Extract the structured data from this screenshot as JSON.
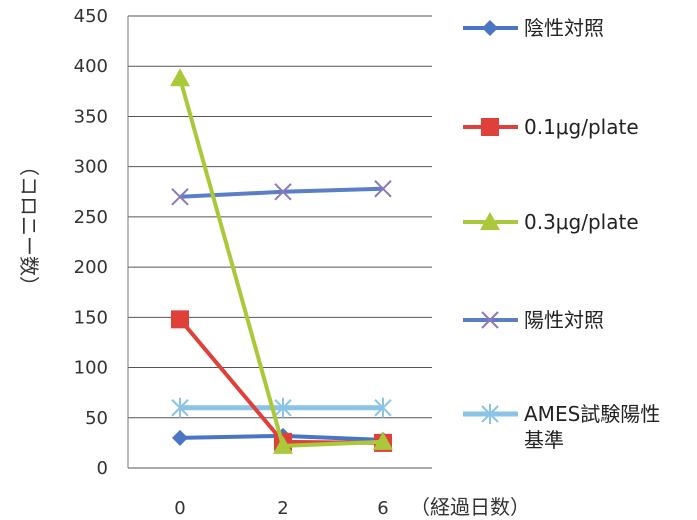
{
  "chart_data": {
    "type": "line",
    "categories": [
      "0",
      "2",
      "6"
    ],
    "xlabel": "（経過日数）",
    "ylabel": "（コロニー数）",
    "ylim": [
      0,
      450
    ],
    "yticks": [
      0,
      50,
      100,
      150,
      200,
      250,
      300,
      350,
      400,
      450
    ],
    "grid": true,
    "legend_position": "right",
    "series": [
      {
        "name": "陰性対照",
        "values": [
          30,
          32,
          28
        ],
        "color": "#4a74c4",
        "marker": "diamond"
      },
      {
        "name": "0.1μg/plate",
        "values": [
          148,
          26,
          25
        ],
        "color": "#e0403a",
        "marker": "square"
      },
      {
        "name": "0.3μg/plate",
        "values": [
          388,
          22,
          26
        ],
        "color": "#a9c83a",
        "marker": "triangle"
      },
      {
        "name": "陽性対照",
        "values": [
          270,
          275,
          278
        ],
        "color": "#5a7fc6",
        "marker": "x"
      },
      {
        "name": "AMES試験陽性基準",
        "values": [
          60,
          60,
          60
        ],
        "color": "#8cc4e6",
        "marker": "asterisk"
      }
    ]
  }
}
